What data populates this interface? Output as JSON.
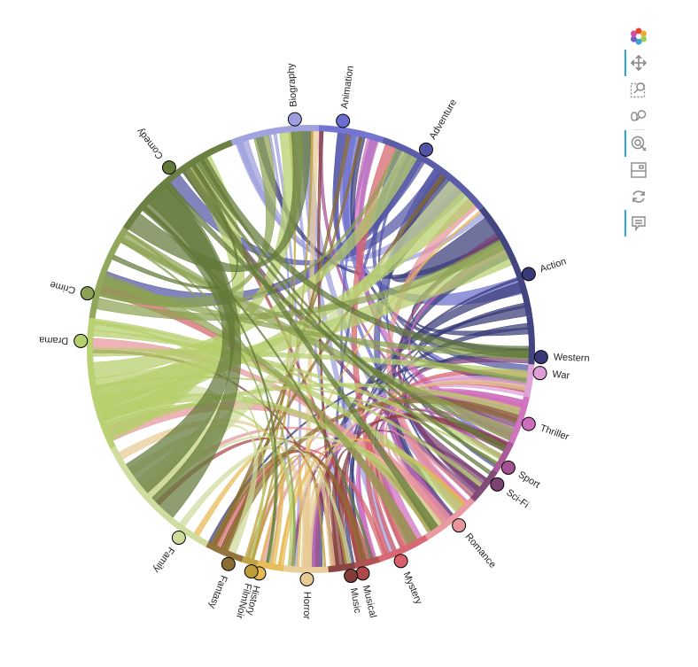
{
  "toolbar": {
    "tools": [
      {
        "name": "bokeh-logo-icon",
        "active": false
      },
      {
        "name": "pan-tool-icon",
        "active": true
      },
      {
        "name": "box-zoom-tool-icon",
        "active": false
      },
      {
        "name": "wheel-zoom-tool-icon",
        "active": false
      },
      {
        "name": "tap-tool-icon",
        "active": true
      },
      {
        "name": "save-tool-icon",
        "active": false
      },
      {
        "name": "reset-tool-icon",
        "active": false
      },
      {
        "name": "hover-tool-icon",
        "active": true
      }
    ]
  },
  "chart_data": {
    "type": "chord",
    "title": "",
    "nodes": [
      {
        "name": "Biography",
        "color": "#9c9ede"
      },
      {
        "name": "Animation",
        "color": "#6b6ecf"
      },
      {
        "name": "Adventure",
        "color": "#5254a3"
      },
      {
        "name": "Action",
        "color": "#393b79"
      },
      {
        "name": "Western",
        "color": "#393b79"
      },
      {
        "name": "War",
        "color": "#de9ed6"
      },
      {
        "name": "Thriller",
        "color": "#ce6dbd"
      },
      {
        "name": "Sport",
        "color": "#a55194"
      },
      {
        "name": "Sci-Fi",
        "color": "#7b4173"
      },
      {
        "name": "Romance",
        "color": "#e7969c"
      },
      {
        "name": "Mystery",
        "color": "#d6616b"
      },
      {
        "name": "Musical",
        "color": "#ad494a"
      },
      {
        "name": "Music",
        "color": "#843c39"
      },
      {
        "name": "Horror",
        "color": "#e7cb94"
      },
      {
        "name": "History",
        "color": "#e7ba52"
      },
      {
        "name": "FilmNoir",
        "color": "#bd9e39"
      },
      {
        "name": "Fantasy",
        "color": "#8c6d31"
      },
      {
        "name": "Family",
        "color": "#cedb9c"
      },
      {
        "name": "Drama",
        "color": "#b5cf6b"
      },
      {
        "name": "Crime",
        "color": "#8ca252"
      },
      {
        "name": "Comedy",
        "color": "#637939"
      }
    ]
  }
}
